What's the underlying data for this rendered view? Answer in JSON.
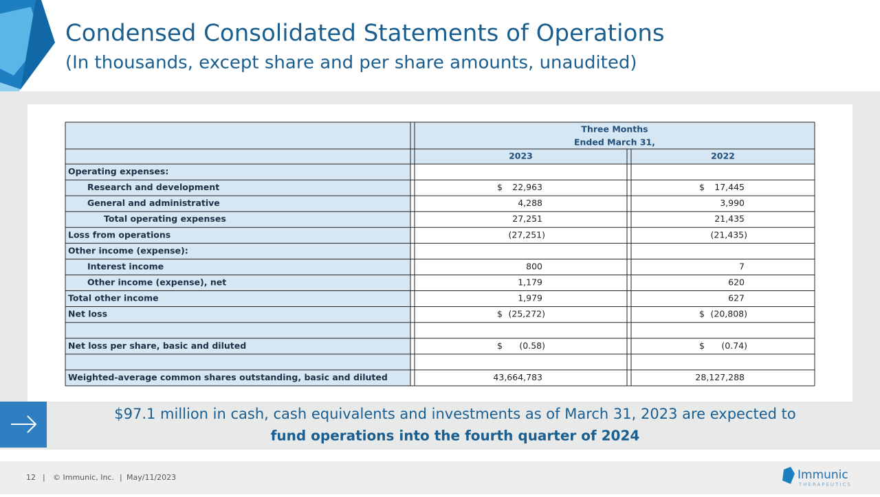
{
  "header": {
    "title": "Condensed Consolidated Statements of Operations",
    "subtitle": "(In thousands, except share and per share amounts, unaudited)"
  },
  "table": {
    "period": [
      "Three Months",
      "Ended March 31,"
    ],
    "columns": [
      "2023",
      "2022"
    ],
    "rows": [
      {
        "label": "Operating expenses:"
      },
      {
        "label": "Research and development",
        "cells": [
          {
            "currency": "$",
            "text": "22,963"
          },
          {
            "currency": "$",
            "text": "17,445"
          }
        ]
      },
      {
        "label": "General and administrative",
        "cells": [
          {
            "text": "4,288"
          },
          {
            "text": "3,990"
          }
        ]
      },
      {
        "label": "Total operating expenses",
        "cells": [
          {
            "text": "27,251"
          },
          {
            "text": "21,435"
          }
        ]
      },
      {
        "label": "Loss from operations",
        "cells": [
          {
            "text": "(27,251)"
          },
          {
            "text": "(21,435)"
          }
        ]
      },
      {
        "label": "Other income (expense):"
      },
      {
        "label": "Interest income",
        "cells": [
          {
            "text": "800"
          },
          {
            "text": "7"
          }
        ]
      },
      {
        "label": "Other  income (expense), net",
        "cells": [
          {
            "text": "1,179"
          },
          {
            "text": "620"
          }
        ]
      },
      {
        "label": "Total other income",
        "cells": [
          {
            "text": "1,979"
          },
          {
            "text": "627"
          }
        ]
      },
      {
        "label": "Net loss",
        "cells": [
          {
            "currency": "$",
            "text": "(25,272)"
          },
          {
            "currency": "$",
            "text": "(20,808)"
          }
        ]
      },
      null,
      {
        "label": "Net loss per share, basic and diluted",
        "cells": [
          {
            "currency": "$",
            "text": "(0.58)"
          },
          {
            "currency": "$",
            "text": "(0.74)"
          }
        ]
      },
      null,
      {
        "label": "Weighted-average common shares outstanding, basic and diluted",
        "cells": [
          {
            "text": "43,664,783"
          },
          {
            "text": "28,127,288"
          }
        ]
      }
    ]
  },
  "note": {
    "line1": "$97.1 million in cash, cash equivalents and investments as of March 31, 2023 are expected to",
    "line2": "fund operations into the fourth quarter of 2024"
  },
  "footer": {
    "page": "12",
    "copyright": "© Immunic, Inc.",
    "date": "May/11/2023",
    "logo": "Immunic",
    "logo_sub": "THERAPEUTICS"
  }
}
